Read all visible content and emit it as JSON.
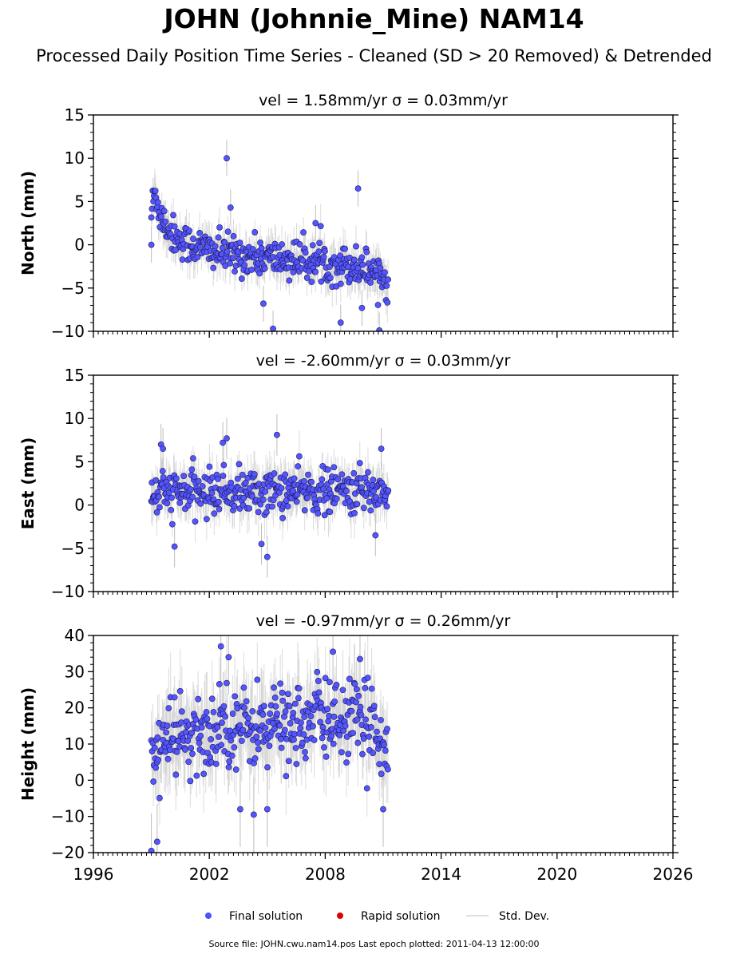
{
  "figure": {
    "title": "JOHN (Johnnie_Mine) NAM14",
    "subtitle": "Processed Daily Position Time Series - Cleaned (SD > 20 Removed) & Detrended",
    "source_note": "Source file: JOHN.cwu.nam14.pos  Last epoch plotted: 2011-04-13 12:00:00"
  },
  "legend": {
    "placement": "bottom-center",
    "items": [
      {
        "label": "Final solution",
        "marker": "dot",
        "color": "#4f4fff"
      },
      {
        "label": "Rapid solution",
        "marker": "dot",
        "color": "#e00000"
      },
      {
        "label": "Std. Dev.",
        "marker": "line",
        "color": "#d3d3d3"
      }
    ]
  },
  "colors": {
    "final": "#5555ff",
    "final_edge": "#1a1a55",
    "rapid": "#e00000",
    "stddev": "#bdbdbd"
  },
  "chart_data": [
    {
      "type": "scatter",
      "title": "vel = 1.58mm/yr   σ = 0.03mm/yr",
      "ylabel": "North (mm)",
      "xlim": [
        1996,
        2026
      ],
      "ylim": [
        -10,
        15
      ],
      "yticks": [
        -10,
        -5,
        0,
        5,
        10,
        15
      ],
      "xticks": [
        1996,
        2002,
        2008,
        2014,
        2020,
        2026
      ],
      "show_xtick_labels": false,
      "data_span": [
        1999.0,
        2011.28
      ],
      "series": [
        {
          "name": "Final solution",
          "x": [
            1999.0,
            1999.05,
            1999.1,
            1999.2,
            1999.3,
            1999.4,
            1999.5,
            1999.7,
            2000.0,
            2000.3,
            2000.6,
            2001.0,
            2001.5,
            2002.0,
            2002.5,
            2003.0,
            2003.5,
            2004.0,
            2004.5,
            2005.0,
            2005.5,
            2006.0,
            2006.5,
            2007.0,
            2007.5,
            2008.0,
            2008.5,
            2009.0,
            2009.5,
            2010.0,
            2010.5,
            2010.8,
            2011.0,
            2011.2
          ],
          "y": [
            3.5,
            4.5,
            5.0,
            6.0,
            5.0,
            4.0,
            3.5,
            2.5,
            1.5,
            0.8,
            0.5,
            0.0,
            -0.3,
            -0.6,
            -0.9,
            -1.1,
            -1.2,
            -1.3,
            -1.4,
            -1.5,
            -1.6,
            -1.7,
            -1.8,
            -1.9,
            -2.0,
            -2.1,
            -2.2,
            -2.3,
            -2.4,
            -2.6,
            -2.9,
            -3.3,
            -3.8,
            -4.5
          ],
          "spread": 1.3
        }
      ],
      "outliers": {
        "x": [
          2002.9,
          2003.1,
          2009.7,
          1999.0,
          2004.8,
          2005.3,
          2008.8,
          2010.8,
          2009.9,
          2007.5
        ],
        "y": [
          10.0,
          4.3,
          6.5,
          0.0,
          -6.8,
          -9.7,
          -9.0,
          -9.9,
          -7.3,
          2.5
        ]
      }
    },
    {
      "type": "scatter",
      "title": "vel = -2.60mm/yr   σ = 0.03mm/yr",
      "ylabel": "East (mm)",
      "xlim": [
        1996,
        2026
      ],
      "ylim": [
        -10,
        15
      ],
      "yticks": [
        -10,
        -5,
        0,
        5,
        10,
        15
      ],
      "xticks": [
        1996,
        2002,
        2008,
        2014,
        2020,
        2026
      ],
      "show_xtick_labels": false,
      "data_span": [
        1999.0,
        2011.28
      ],
      "series": [
        {
          "name": "Final solution",
          "x": [
            1999.0,
            2000.0,
            2001.0,
            2002.0,
            2003.0,
            2004.0,
            2005.0,
            2006.0,
            2007.0,
            2008.0,
            2009.0,
            2010.0,
            2011.0,
            2011.28
          ],
          "y": [
            1.0,
            1.4,
            1.5,
            1.4,
            1.6,
            1.5,
            1.5,
            1.6,
            1.6,
            1.5,
            1.6,
            1.6,
            1.6,
            1.5
          ],
          "spread": 1.5
        }
      ],
      "outliers": {
        "x": [
          1999.5,
          1999.6,
          2002.7,
          2002.9,
          2004.7,
          2005.0,
          2005.5,
          2010.9,
          2000.2,
          2010.6
        ],
        "y": [
          7.0,
          6.5,
          7.2,
          7.7,
          -4.5,
          -6.0,
          8.1,
          6.5,
          -4.8,
          -3.5
        ]
      }
    },
    {
      "type": "scatter",
      "title": "vel = -0.97mm/yr   σ = 0.26mm/yr",
      "ylabel": "Height (mm)",
      "xlim": [
        1996,
        2026
      ],
      "ylim": [
        -20,
        40
      ],
      "yticks": [
        -20,
        -10,
        0,
        10,
        20,
        30,
        40
      ],
      "xticks": [
        1996,
        2002,
        2008,
        2014,
        2020,
        2026
      ],
      "xticklabels": [
        "1996",
        "2002",
        "2008",
        "2014",
        "2020",
        "2026"
      ],
      "show_xtick_labels": true,
      "data_span": [
        1999.0,
        2011.28
      ],
      "series": [
        {
          "name": "Final solution",
          "x": [
            1999.0,
            1999.5,
            2000.0,
            2000.5,
            2001.0,
            2001.5,
            2002.0,
            2002.5,
            2003.0,
            2003.5,
            2004.0,
            2004.5,
            2005.0,
            2005.5,
            2006.0,
            2006.5,
            2007.0,
            2007.5,
            2008.0,
            2008.5,
            2009.0,
            2009.5,
            2010.0,
            2010.5,
            2011.0,
            2011.28
          ],
          "y": [
            3,
            12,
            10,
            14,
            8,
            13,
            11,
            17,
            16,
            15,
            14,
            16,
            12,
            18,
            14,
            18,
            13,
            19,
            16,
            19,
            15,
            18,
            13,
            17,
            12,
            9
          ],
          "spread": 6.5
        }
      ],
      "outliers": {
        "x": [
          1999.0,
          1999.3,
          2002.6,
          2003.6,
          2004.3,
          2008.4,
          2009.8,
          2005.0,
          2003.0,
          2011.0
        ],
        "y": [
          -19.5,
          -17.0,
          37.0,
          -8.0,
          -9.5,
          35.5,
          33.5,
          -8.0,
          34.0,
          -8.0
        ]
      }
    }
  ]
}
